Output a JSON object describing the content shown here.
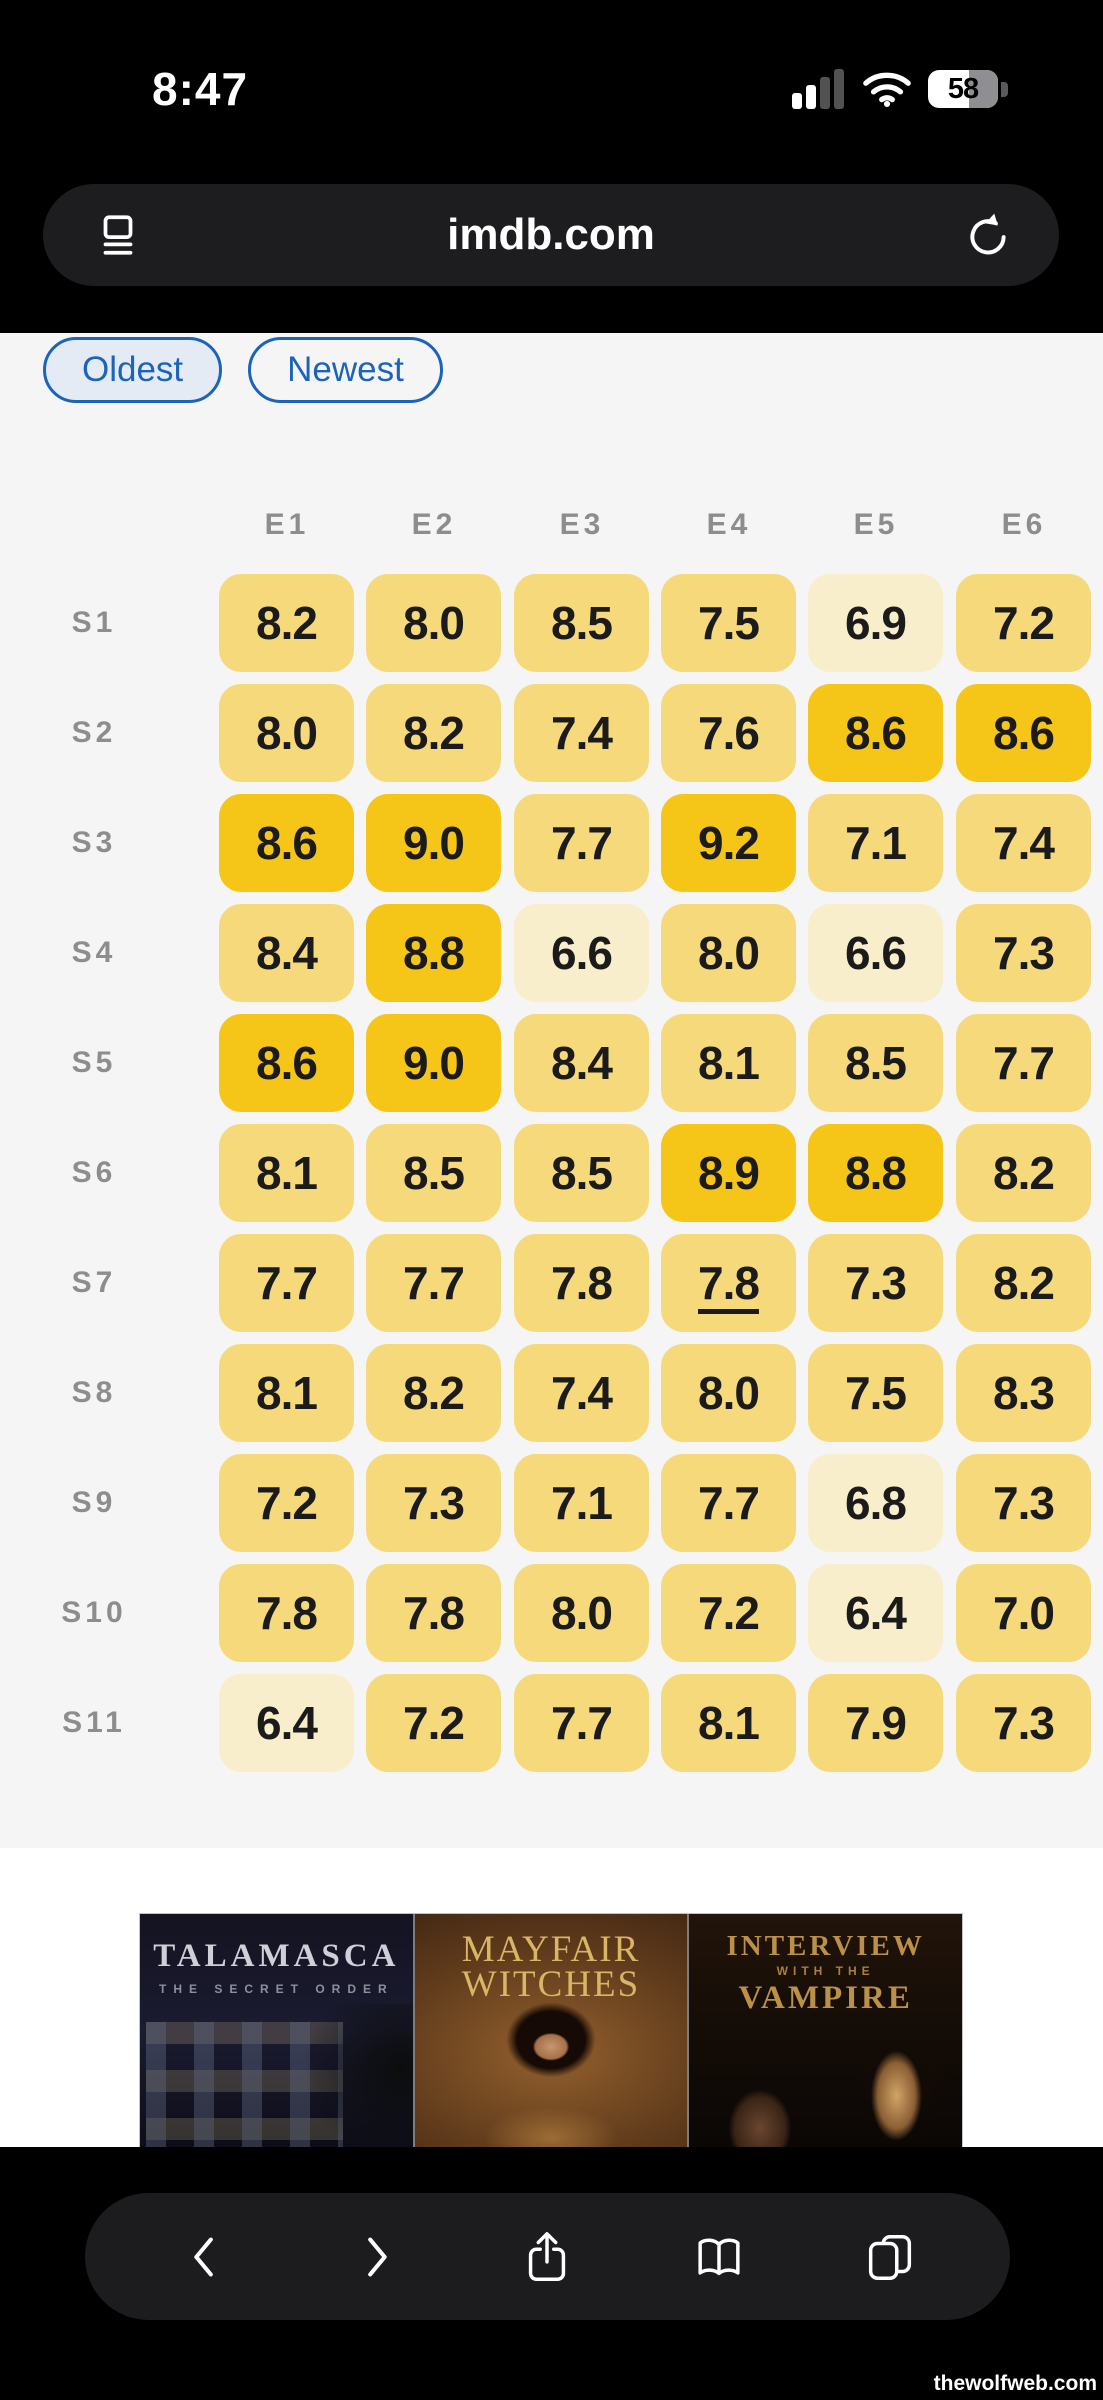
{
  "status_bar": {
    "time": "8:47",
    "battery_percent": "58"
  },
  "browser_chrome": {
    "url": "imdb.com"
  },
  "filters": {
    "oldest_label": "Oldest",
    "newest_label": "Newest",
    "active": "Oldest"
  },
  "chart_data": {
    "type": "heatmap",
    "x_labels": [
      "E1",
      "E2",
      "E3",
      "E4",
      "E5",
      "E6"
    ],
    "y_labels": [
      "S1",
      "S2",
      "S3",
      "S4",
      "S5",
      "S6",
      "S7",
      "S8",
      "S9",
      "S10",
      "S11"
    ],
    "values": [
      [
        8.2,
        8.0,
        8.5,
        7.5,
        6.9,
        7.2
      ],
      [
        8.0,
        8.2,
        7.4,
        7.6,
        8.6,
        8.6
      ],
      [
        8.6,
        9.0,
        7.7,
        9.2,
        7.1,
        7.4
      ],
      [
        8.4,
        8.8,
        6.6,
        8.0,
        6.6,
        7.3
      ],
      [
        8.6,
        9.0,
        8.4,
        8.1,
        8.5,
        7.7
      ],
      [
        8.1,
        8.5,
        8.5,
        8.9,
        8.8,
        8.2
      ],
      [
        7.7,
        7.7,
        7.8,
        7.8,
        7.3,
        8.2
      ],
      [
        8.1,
        8.2,
        7.4,
        8.0,
        7.5,
        8.3
      ],
      [
        7.2,
        7.3,
        7.1,
        7.7,
        6.8,
        7.3
      ],
      [
        7.8,
        7.8,
        8.0,
        7.2,
        6.4,
        7.0
      ],
      [
        6.4,
        7.2,
        7.7,
        8.1,
        7.9,
        7.3
      ]
    ],
    "underlined_cell": {
      "row": 6,
      "col": 3
    },
    "color_scale": {
      "high": "#F5C518",
      "mid": "#F5D97A",
      "low": "#F9EECB",
      "high_min": 8.6,
      "mid_min": 7.0
    }
  },
  "ad_banner": {
    "posters": [
      {
        "title": "TALAMASCA",
        "subtitle": "THE SECRET ORDER"
      },
      {
        "title_line1": "MAYFAIR",
        "title_line2": "WITCHES"
      },
      {
        "title_line1": "INTERVIEW",
        "title_line2": "WITH THE",
        "title_line3": "VAMPIRE"
      }
    ]
  },
  "toolbar": {
    "buttons": [
      "back",
      "forward",
      "share",
      "bookmarks",
      "tabs"
    ]
  },
  "watermark": "thewolfweb.com"
}
